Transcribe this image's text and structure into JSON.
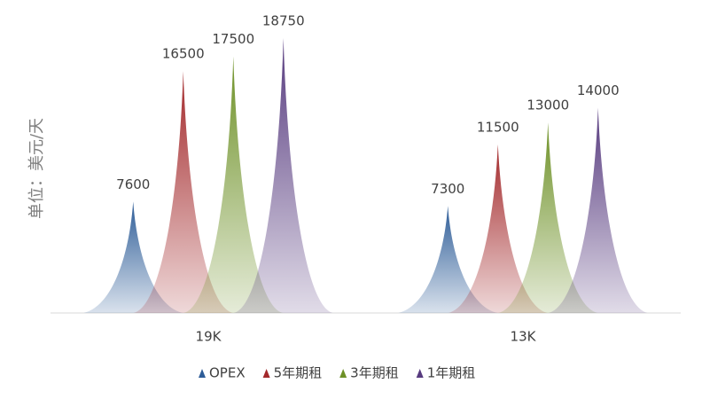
{
  "chart_data": {
    "type": "spike",
    "y_label": "单位：美元/天",
    "categories": [
      "19K",
      "13K"
    ],
    "series": [
      {
        "name": "OPEX",
        "color": "#2e5d98",
        "values": [
          7600,
          7300
        ]
      },
      {
        "name": "5年期租",
        "color": "#a3292b",
        "values": [
          16500,
          11500
        ]
      },
      {
        "name": "3年期租",
        "color": "#6e9127",
        "values": [
          17500,
          13000
        ]
      },
      {
        "name": "1年期租",
        "color": "#573b7f",
        "values": [
          18750,
          14000
        ]
      }
    ],
    "legend": "bottom"
  }
}
